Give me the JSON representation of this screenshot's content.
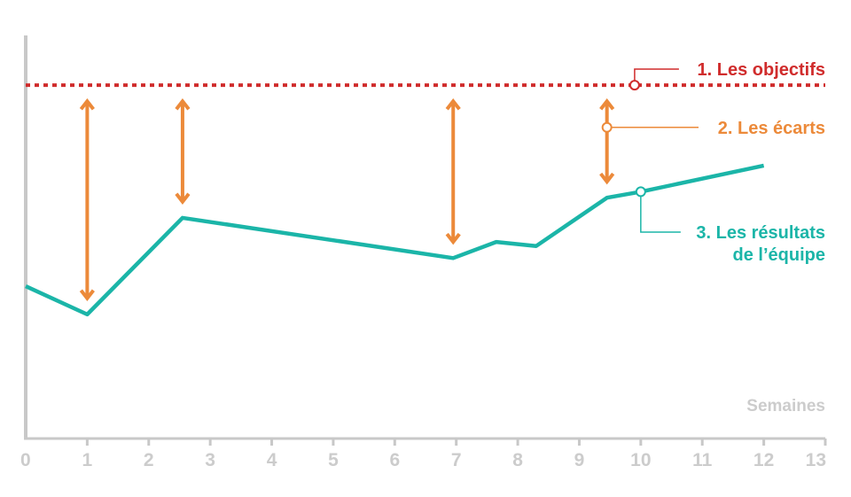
{
  "chart_data": {
    "type": "line",
    "xlabel": "Semaines",
    "ylabel": "",
    "title": "",
    "xlim": [
      0,
      13
    ],
    "ylim": [
      0,
      100
    ],
    "x_ticks": [
      0,
      1,
      2,
      3,
      4,
      5,
      6,
      7,
      8,
      9,
      10,
      11,
      12,
      13
    ],
    "grid": false,
    "colors": {
      "axis": "#c8c8c8",
      "tick_label": "#cccccc",
      "objectives": "#d02c2c",
      "gaps": "#ec8a3a",
      "results": "#1bb5a8"
    },
    "target": {
      "value": 85
    },
    "series": [
      {
        "x": [
          0,
          1,
          2.55,
          6.95,
          7.65,
          8.3,
          9.45,
          10,
          12
        ],
        "y": [
          35,
          28,
          52,
          42,
          46,
          45,
          57,
          58.5,
          65
        ]
      }
    ],
    "gaps": [
      {
        "x": 1,
        "y_from": 32,
        "y_to": 81
      },
      {
        "x": 2.55,
        "y_from": 56,
        "y_to": 81
      },
      {
        "x": 6.95,
        "y_from": 46,
        "y_to": 81
      },
      {
        "x": 9.45,
        "y_from": 61,
        "y_to": 81
      }
    ],
    "annotations": {
      "objectives": {
        "label": "1. Les objectifs",
        "x": 9.9,
        "y": 85
      },
      "gaps": {
        "label": "2. Les écarts",
        "x": 9.45,
        "y": 74.5
      },
      "results": {
        "label_line1": "3. Les résultats",
        "label_line2": "de l’équipe",
        "x": 10,
        "y": 58.5
      }
    }
  }
}
